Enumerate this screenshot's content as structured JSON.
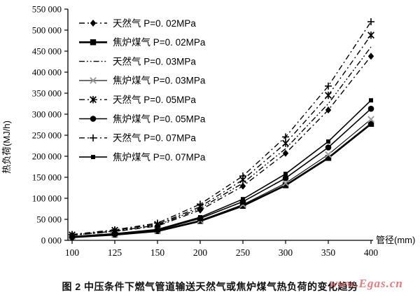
{
  "figure": {
    "caption": "图 2  中压条件下燃气管道输送天然气或焦炉煤气热负荷的变化趋势",
    "watermark": "www.Egas.cn",
    "watermark_color": "#e06666"
  },
  "chart_data": {
    "type": "line",
    "title": "",
    "xlabel": "管径(mm)",
    "ylabel": "热负荷(MJ/h)",
    "grid": false,
    "legend_position": "inside-top-left",
    "x_categories": [
      100,
      125,
      150,
      200,
      250,
      300,
      350,
      400
    ],
    "x_tick_labels": [
      "100",
      "125",
      "150",
      "200",
      "250",
      "300",
      "350",
      "400"
    ],
    "ylim": [
      0,
      550000
    ],
    "y_tick_step": 50000,
    "y_tick_labels": [
      "0 000",
      "50 000",
      "100 000",
      "150 000",
      "200 000",
      "250 000",
      "300 000",
      "350 000",
      "400 000",
      "450 000",
      "500 000",
      "550 000"
    ],
    "series": [
      {
        "name": "天然气 P=0. 02MPa",
        "line": "dashdot",
        "marker": "diamond",
        "color": "#000000",
        "values": [
          12000,
          21000,
          34000,
          72000,
          129000,
          207000,
          310000,
          438000
        ]
      },
      {
        "name": "焦炉煤气 P=0. 02MPa",
        "line": "solid-thick",
        "marker": "square",
        "color": "#000000",
        "values": [
          7500,
          13500,
          22000,
          46000,
          82000,
          131000,
          196000,
          277000
        ]
      },
      {
        "name": "天然气 P=0. 03MPa",
        "line": "dashdotdot",
        "marker": "none",
        "color": "#000000",
        "values": [
          12500,
          22000,
          36000,
          76000,
          136000,
          218000,
          325000,
          460000
        ]
      },
      {
        "name": "焦炉煤气 P=0. 03MPa",
        "line": "solid-thin",
        "marker": "x-light",
        "color": "#000000",
        "values": [
          8000,
          14000,
          22500,
          47500,
          85000,
          136000,
          204000,
          288000
        ]
      },
      {
        "name": "天然气 P=0. 05MPa",
        "line": "dashdot",
        "marker": "asterisk",
        "color": "#000000",
        "values": [
          13000,
          24000,
          38000,
          80000,
          144000,
          231000,
          345000,
          488000
        ]
      },
      {
        "name": "焦炉煤气 P=0. 05MPa",
        "line": "solid",
        "marker": "circle",
        "color": "#000000",
        "values": [
          8500,
          15000,
          24500,
          52000,
          92000,
          148000,
          221000,
          313000
        ]
      },
      {
        "name": "天然气 P=0. 07MPa",
        "line": "dashdot",
        "marker": "plus",
        "color": "#000000",
        "values": [
          14000,
          25000,
          41000,
          86000,
          153000,
          246000,
          367000,
          520000
        ]
      },
      {
        "name": "焦炉煤气 P=0. 07MPa",
        "line": "solid",
        "marker": "square-small",
        "color": "#000000",
        "values": [
          9000,
          16000,
          26000,
          55000,
          98000,
          158000,
          235000,
          333000
        ]
      }
    ]
  }
}
